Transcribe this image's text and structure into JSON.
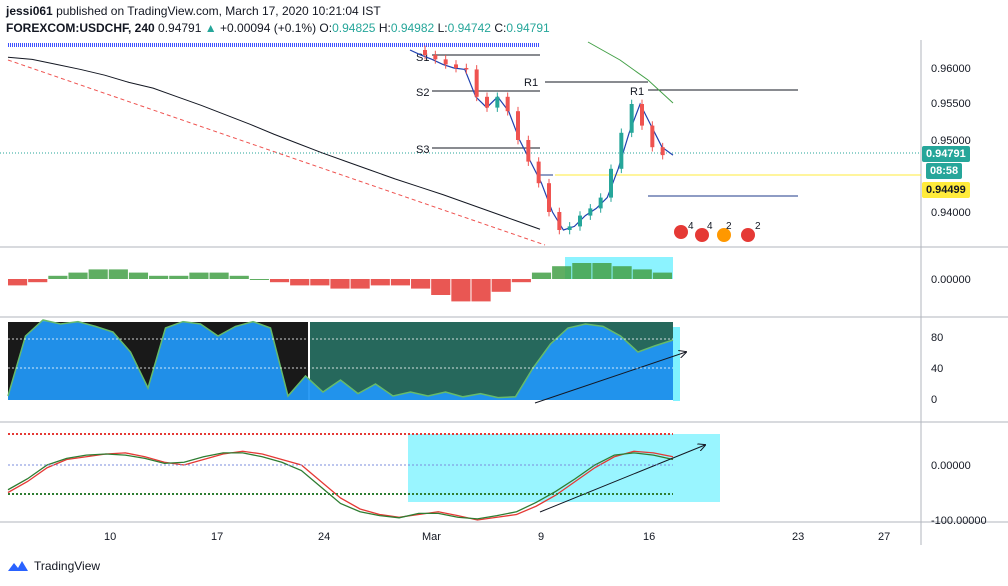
{
  "header": {
    "publisher": "jessi061",
    "published_text": "published on TradingView.com, March 17, 2020 10:21:04 IST",
    "symbol": "FOREXCOM:USDCHF, 240",
    "last": "0.94791",
    "change_arrow": "▲",
    "change": "+0.00094 (+0.1%)",
    "o_label": "O:",
    "o_value": "0.94825",
    "h_label": "H:",
    "h_value": "0.94982",
    "l_label": "L:",
    "l_value": "0.94742",
    "c_label": "C:",
    "c_value": "0.94791"
  },
  "price_axis": {
    "ticks": [
      "0.96000",
      "0.95500",
      "0.95000",
      "0.94500",
      "0.94000"
    ],
    "last_price_tag": "0.94791",
    "countdown_tag": "08:58",
    "level_tag": "0.94499"
  },
  "levels": {
    "s1": "S1",
    "s2": "S2",
    "s3": "S3",
    "r1": "R1",
    "r1_right": "R1"
  },
  "event_badges": [
    "4",
    "4",
    "2",
    "2"
  ],
  "osc1_axis": {
    "ticks": [
      "0.00000"
    ]
  },
  "osc2_axis": {
    "ticks": [
      "80",
      "40",
      "0"
    ]
  },
  "osc3_axis": {
    "ticks": [
      "0.00000",
      "-100.00000"
    ]
  },
  "time_axis": {
    "ticks": [
      "10",
      "17",
      "24",
      "Mar",
      "9",
      "16",
      "23",
      "27"
    ]
  },
  "branding": {
    "logo_text": "TradingView"
  },
  "colors": {
    "up_candle": "#26a69a",
    "down_candle": "#ef5350",
    "highlight": "#00e5ff",
    "last_price": "#26a69a",
    "level_tag": "#ffeb3b"
  },
  "chart_data": [
    {
      "type": "line",
      "title": "FOREXCOM:USDCHF, 240",
      "y_axis_ticks": [
        0.96,
        0.955,
        0.95,
        0.945,
        0.94
      ],
      "ylim": [
        0.9345,
        0.9625
      ],
      "last_price": 0.94791,
      "series": [
        {
          "values": [
            0.9615,
            0.9612,
            0.9605,
            0.9598,
            0.959,
            0.958,
            0.9572,
            0.956,
            0.9548,
            0.9535,
            0.9522,
            0.9508,
            0.9495,
            0.9482,
            0.947,
            0.9458,
            0.9446,
            0.9435,
            0.9424,
            0.9412,
            0.94,
            0.9388,
            0.9376
          ]
        },
        {
          "values": [
            0.9625,
            0.9618,
            0.9612,
            0.9605,
            0.96,
            0.9598,
            0.956,
            0.9545,
            0.956,
            0.954,
            0.95,
            0.947,
            0.944,
            0.94,
            0.9375,
            0.938,
            0.9395,
            0.9405,
            0.942,
            0.946,
            0.951,
            0.955,
            0.952,
            0.949,
            0.9479
          ]
        }
      ]
    },
    {
      "type": "bar",
      "y_axis_ticks": [
        0
      ],
      "values": [
        -2,
        -1,
        1,
        2,
        3,
        3,
        2,
        1,
        1,
        2,
        2,
        1,
        0,
        -1,
        -2,
        -2,
        -3,
        -3,
        -2,
        -2,
        -3,
        -5,
        -7,
        -7,
        -4,
        -1,
        2,
        4,
        5,
        5,
        4,
        3,
        2
      ]
    },
    {
      "type": "area",
      "y_axis_ticks": [
        80,
        40,
        0
      ],
      "ylim": [
        -5,
        105
      ],
      "values": [
        5,
        80,
        100,
        95,
        98,
        92,
        85,
        60,
        15,
        90,
        98,
        95,
        80,
        92,
        98,
        90,
        5,
        30,
        10,
        25,
        8,
        20,
        5,
        10,
        5,
        10,
        4,
        8,
        3,
        4,
        40,
        70,
        90,
        95,
        92,
        80,
        60,
        68,
        75
      ]
    },
    {
      "type": "line",
      "y_axis_ticks": [
        0,
        -100
      ],
      "ylim": [
        -110,
        55
      ],
      "series": [
        {
          "values": [
            -50,
            -30,
            -5,
            10,
            15,
            20,
            22,
            15,
            5,
            0,
            10,
            20,
            25,
            20,
            10,
            0,
            -30,
            -60,
            -80,
            -90,
            -95,
            -90,
            -85,
            -92,
            -100,
            -95,
            -90,
            -75,
            -55,
            -30,
            -5,
            15,
            25,
            22,
            15
          ]
        },
        {
          "values": [
            -45,
            -25,
            0,
            12,
            18,
            20,
            18,
            12,
            3,
            5,
            15,
            22,
            22,
            15,
            5,
            -10,
            -40,
            -70,
            -85,
            -92,
            -96,
            -88,
            -88,
            -95,
            -98,
            -92,
            -85,
            -68,
            -48,
            -25,
            0,
            18,
            22,
            18,
            10
          ]
        }
      ]
    }
  ]
}
